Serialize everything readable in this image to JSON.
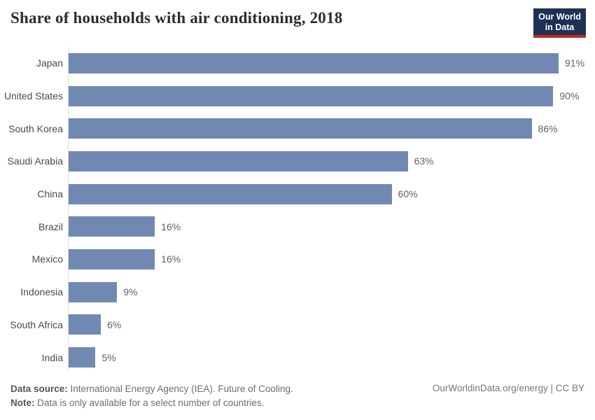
{
  "header": {
    "logo": {
      "line1": "Our World",
      "line2": "in Data"
    }
  },
  "chart_data": {
    "type": "bar",
    "orientation": "horizontal",
    "title": "Share of households with air conditioning, 2018",
    "categories": [
      "Japan",
      "United States",
      "South Korea",
      "Saudi Arabia",
      "China",
      "Brazil",
      "Mexico",
      "Indonesia",
      "South Africa",
      "India"
    ],
    "values": [
      91,
      90,
      86,
      63,
      60,
      16,
      16,
      9,
      6,
      5
    ],
    "value_suffix": "%",
    "xlabel": "",
    "ylabel": "",
    "xlim": [
      0,
      100
    ],
    "grid": false,
    "legend": "none",
    "bar_color": "#7189b2"
  },
  "footer": {
    "source_label": "Data source:",
    "source_text": " International Energy Agency (IEA). Future of Cooling.",
    "note_label": "Note:",
    "note_text": " Data is only available for a select number of countries.",
    "link": "OurWorldinData.org/energy | CC BY"
  }
}
